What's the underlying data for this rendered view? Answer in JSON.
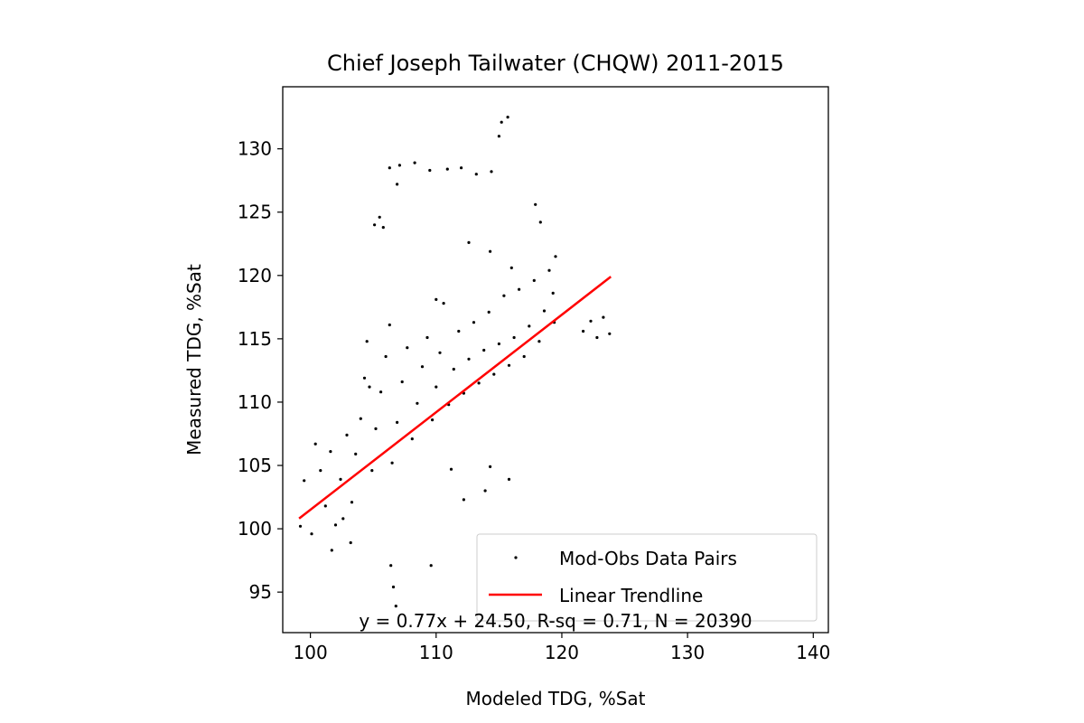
{
  "chart_data": {
    "type": "scatter",
    "title": "Chief Joseph Tailwater (CHQW) 2011-2015",
    "xlabel": "Modeled TDG, %Sat",
    "ylabel": "Measured TDG, %Sat",
    "xlim": [
      97.8,
      141.2
    ],
    "ylim": [
      91.8,
      134.9
    ],
    "x_ticks": [
      100,
      110,
      120,
      130,
      140
    ],
    "y_ticks": [
      95,
      100,
      105,
      110,
      115,
      120,
      125,
      130
    ],
    "grid": false,
    "legend_position": "lower-right",
    "annotation": "y = 0.77x + 24.50, R-sq = 0.71, N = 20390",
    "series": [
      {
        "name": "Mod-Obs Data Pairs",
        "kind": "scatter",
        "color": "#000000",
        "points": [
          [
            99.2,
            100.2
          ],
          [
            99.5,
            103.8
          ],
          [
            100.1,
            99.6
          ],
          [
            100.8,
            104.6
          ],
          [
            101.2,
            101.8
          ],
          [
            101.6,
            106.1
          ],
          [
            102.0,
            100.3
          ],
          [
            102.4,
            103.9
          ],
          [
            102.9,
            107.4
          ],
          [
            103.3,
            102.1
          ],
          [
            103.6,
            105.9
          ],
          [
            104.0,
            108.7
          ],
          [
            104.3,
            111.9
          ],
          [
            104.5,
            114.8
          ],
          [
            104.9,
            104.6
          ],
          [
            105.2,
            107.9
          ],
          [
            105.6,
            110.8
          ],
          [
            106.0,
            113.6
          ],
          [
            106.3,
            116.1
          ],
          [
            106.5,
            105.2
          ],
          [
            106.9,
            108.4
          ],
          [
            107.3,
            111.6
          ],
          [
            107.7,
            114.3
          ],
          [
            108.1,
            107.1
          ],
          [
            108.5,
            109.9
          ],
          [
            108.9,
            112.8
          ],
          [
            109.3,
            115.1
          ],
          [
            109.7,
            108.6
          ],
          [
            110.0,
            111.2
          ],
          [
            110.3,
            113.9
          ],
          [
            110.6,
            117.8
          ],
          [
            111.0,
            109.8
          ],
          [
            111.4,
            112.6
          ],
          [
            111.8,
            115.6
          ],
          [
            112.2,
            110.7
          ],
          [
            112.6,
            113.4
          ],
          [
            113.0,
            116.3
          ],
          [
            113.4,
            111.5
          ],
          [
            113.8,
            114.1
          ],
          [
            114.2,
            117.1
          ],
          [
            114.6,
            112.2
          ],
          [
            115.0,
            114.6
          ],
          [
            115.4,
            118.4
          ],
          [
            115.8,
            112.9
          ],
          [
            116.2,
            115.1
          ],
          [
            116.6,
            118.9
          ],
          [
            117.0,
            113.6
          ],
          [
            117.4,
            116.0
          ],
          [
            117.8,
            119.6
          ],
          [
            118.2,
            114.8
          ],
          [
            118.6,
            117.2
          ],
          [
            119.0,
            120.4
          ],
          [
            119.3,
            118.6
          ],
          [
            119.5,
            121.5
          ],
          [
            119.4,
            116.3
          ],
          [
            121.7,
            115.6
          ],
          [
            122.3,
            116.4
          ],
          [
            122.8,
            115.1
          ],
          [
            123.3,
            116.7
          ],
          [
            123.8,
            115.4
          ],
          [
            105.1,
            124.0
          ],
          [
            105.5,
            124.6
          ],
          [
            105.8,
            123.8
          ],
          [
            106.3,
            128.5
          ],
          [
            107.1,
            128.7
          ],
          [
            108.3,
            128.9
          ],
          [
            109.5,
            128.3
          ],
          [
            110.9,
            128.4
          ],
          [
            112.0,
            128.5
          ],
          [
            113.2,
            128.0
          ],
          [
            114.4,
            128.2
          ],
          [
            115.2,
            132.1
          ],
          [
            115.7,
            132.5
          ],
          [
            106.9,
            127.2
          ],
          [
            115.0,
            131.0
          ],
          [
            106.4,
            97.1
          ],
          [
            106.6,
            95.4
          ],
          [
            106.8,
            93.9
          ],
          [
            113.9,
            103.0
          ],
          [
            114.3,
            104.9
          ],
          [
            109.6,
            97.1
          ],
          [
            112.2,
            102.3
          ],
          [
            115.8,
            103.9
          ],
          [
            111.2,
            104.7
          ],
          [
            101.7,
            98.3
          ],
          [
            103.2,
            98.9
          ],
          [
            102.6,
            100.8
          ],
          [
            100.4,
            106.7
          ],
          [
            118.3,
            124.2
          ],
          [
            117.9,
            125.6
          ],
          [
            112.6,
            122.6
          ],
          [
            114.3,
            121.9
          ],
          [
            116.0,
            120.6
          ],
          [
            110.0,
            118.1
          ],
          [
            104.7,
            111.2
          ]
        ]
      },
      {
        "name": "Linear Trendline",
        "kind": "line",
        "color": "#ff0000",
        "slope": 0.77,
        "intercept": 24.5,
        "x_range": [
          99.1,
          123.9
        ]
      }
    ]
  }
}
